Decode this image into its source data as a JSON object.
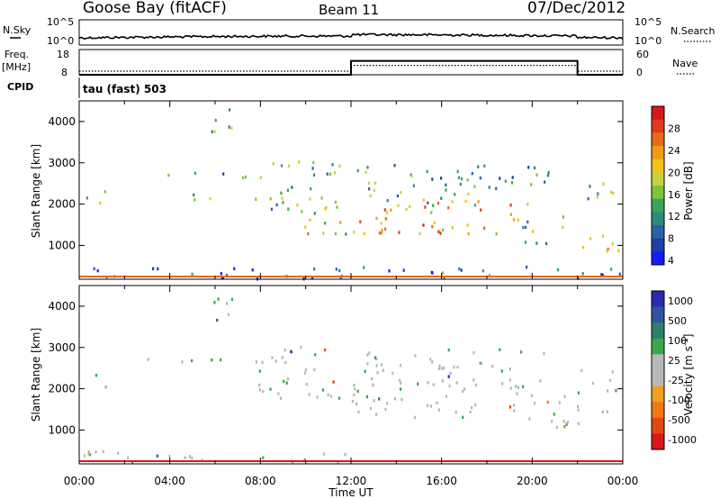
{
  "header": {
    "station": "Goose Bay (fitACF)",
    "beam": "Beam 11",
    "date": "07/Dec/2012"
  },
  "status_panels": {
    "nsky_label": "N.Sky",
    "nsearch_label": "N.Search",
    "left_ticks": [
      "10^5",
      "10^0"
    ],
    "right_ticks": [
      "10^5",
      "10^0"
    ],
    "freq_label_1": "Freq.",
    "freq_label_2": "[MHz]",
    "freq_ticks": [
      "18",
      "8"
    ],
    "nave_label": "Nave",
    "nave_ticks": [
      "60",
      "0"
    ],
    "cpid_label": "CPID",
    "cpid_value": "tau (fast) 503",
    "freq_step": {
      "before": 8.0,
      "after": 13.5,
      "switch_on_hour": 12.0,
      "switch_off_hour": 22.0
    }
  },
  "chart_data": [
    {
      "type": "heatmap",
      "panel": "power",
      "ylabel": "Slant Range [km]",
      "yticks": [
        "4000",
        "3000",
        "2000",
        "1000"
      ],
      "ylim": [
        180,
        4500
      ],
      "xlim": [
        0,
        24
      ],
      "colorbar_label": "Power [dB]",
      "colorbar_ticks": [
        "28",
        "24",
        "20",
        "16",
        "12",
        "8",
        "4"
      ],
      "colors": [
        "#1a1aff",
        "#1e3fa6",
        "#2b63a8",
        "#2f8a7a",
        "#3aa55a",
        "#7fc43a",
        "#c8d23c",
        "#f2c21a",
        "#f09a18",
        "#e8681e",
        "#e23a1e",
        "#d81818"
      ],
      "echo_regions": [
        {
          "t0": 0.0,
          "t1": 24.0,
          "r0": 220,
          "r1": 520,
          "level": 0.25
        },
        {
          "t0": 0.3,
          "t1": 1.3,
          "r0": 2050,
          "r1": 2400,
          "level": 0.45
        },
        {
          "t0": 5.0,
          "t1": 7.0,
          "r0": 2050,
          "r1": 2300,
          "level": 0.5
        },
        {
          "t0": 5.8,
          "t1": 6.8,
          "r0": 3500,
          "r1": 4400,
          "level": 0.35
        },
        {
          "t0": 3.0,
          "t1": 8.0,
          "r0": 2650,
          "r1": 2800,
          "level": 0.3
        },
        {
          "t0": 7.5,
          "t1": 11.5,
          "r0": 1800,
          "r1": 3100,
          "level": 0.4
        },
        {
          "t0": 9.5,
          "t1": 12.0,
          "r0": 1300,
          "r1": 2000,
          "level": 0.55
        },
        {
          "t0": 12.0,
          "t1": 19.5,
          "r0": 1300,
          "r1": 2200,
          "level": 0.7
        },
        {
          "t0": 12.0,
          "t1": 21.0,
          "r0": 2000,
          "r1": 3000,
          "level": 0.35
        },
        {
          "t0": 19.5,
          "t1": 21.5,
          "r0": 1000,
          "r1": 1900,
          "level": 0.4
        },
        {
          "t0": 22.0,
          "t1": 24.0,
          "r0": 900,
          "r1": 1500,
          "level": 0.6
        },
        {
          "t0": 22.0,
          "t1": 24.0,
          "r0": 1800,
          "r1": 2600,
          "level": 0.45
        }
      ]
    },
    {
      "type": "heatmap",
      "panel": "velocity",
      "ylabel": "Slant Range [km]",
      "yticks": [
        "4000",
        "3000",
        "2000",
        "1000"
      ],
      "ylim": [
        180,
        4500
      ],
      "xlim": [
        0,
        24
      ],
      "xticks": [
        "00:00",
        "04:00",
        "08:00",
        "12:00",
        "16:00",
        "20:00",
        "00:00"
      ],
      "xlabel": "Time UT",
      "colorbar_label": "Velocity [m s",
      "colorbar_label_sup": "-1",
      "colorbar_label_end": "]",
      "colorbar_ticks": [
        "1000",
        "500",
        "100",
        "25",
        "-25",
        "-100",
        "-500",
        "-1000"
      ],
      "colors": [
        "#2a2ab0",
        "#2f55a0",
        "#2f7f6a",
        "#3aa84a",
        "#b8b8b8",
        "#b8b8b8",
        "#f0a020",
        "#f07818",
        "#e04818",
        "#d81818"
      ],
      "echo_regions": [
        {
          "t0": 0.0,
          "t1": 12.0,
          "r0": 220,
          "r1": 520,
          "level": 0.5
        },
        {
          "t0": 0.3,
          "t1": 1.3,
          "r0": 2050,
          "r1": 2400,
          "level": 0.45
        },
        {
          "t0": 3.0,
          "t1": 7.0,
          "r0": 2600,
          "r1": 2800,
          "level": 0.45
        },
        {
          "t0": 5.8,
          "t1": 6.8,
          "r0": 3500,
          "r1": 4400,
          "level": 0.5
        },
        {
          "t0": 7.5,
          "t1": 11.5,
          "r0": 1800,
          "r1": 3100,
          "level": 0.45
        },
        {
          "t0": 12.0,
          "t1": 19.5,
          "r0": 1300,
          "r1": 2300,
          "level": 0.45
        },
        {
          "t0": 12.0,
          "t1": 20.5,
          "r0": 2000,
          "r1": 3000,
          "level": 0.4
        },
        {
          "t0": 19.0,
          "t1": 22.0,
          "r0": 1100,
          "r1": 1900,
          "level": 0.3
        },
        {
          "t0": 22.0,
          "t1": 24.0,
          "r0": 1100,
          "r1": 1500,
          "level": 0.45
        },
        {
          "t0": 22.0,
          "t1": 24.0,
          "r0": 1900,
          "r1": 2500,
          "level": 0.45
        }
      ]
    }
  ]
}
